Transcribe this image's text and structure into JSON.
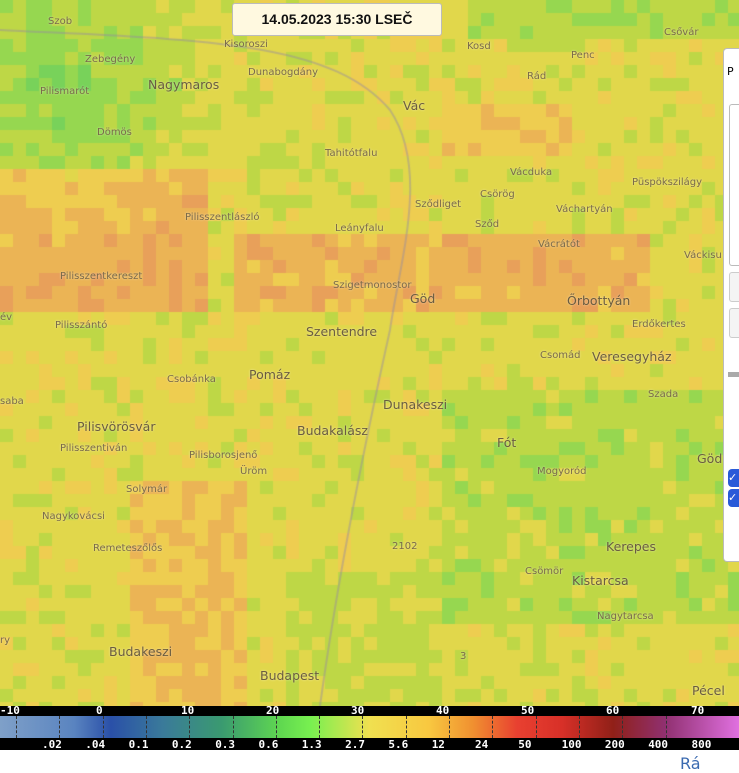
{
  "timestamp": "14.05.2023 15:30 LSEČ",
  "places": [
    "Szob",
    "Zebegény",
    "Pilismarót",
    "Nagymaros",
    "Kisoroszi",
    "Dunabogdány",
    "Kosd",
    "Penc",
    "Csővár",
    "Rád",
    "Vác",
    "Dömös",
    "Tahitótfalu",
    "Vácduka",
    "Püspökszilágy",
    "Csörög",
    "Sződliget",
    "Váchartyán",
    "Pilisszentlászló",
    "Sződ",
    "Leányfalu",
    "Vácrátót",
    "Váckisu",
    "Pilisszentkereszt",
    "Szigetmonostor",
    "Göd",
    "Őrbottyán",
    "Pilisszántó",
    "Erdőkertes",
    "Szentendre",
    "Csomád",
    "Veresegyház",
    "Csobánka",
    "Pomáz",
    "Szada",
    "saba",
    "Dunakeszi",
    "Pilisvörösvár",
    "Budakalász",
    "Fót",
    "Pilisszentiván",
    "Pilisborosjenő",
    "Üröm",
    "Mogyoród",
    "Göd",
    "Solymár",
    "Nagykovácsi",
    "Remeteszőlős",
    "Kerepes",
    "Csömör",
    "Kistarcsa",
    "Nagytarcsa",
    "Budakeszi",
    "Budapest",
    "Pécel",
    "ry",
    "év",
    "2102",
    "3"
  ],
  "legend": {
    "dbz": [
      "-10",
      "0",
      "10",
      "20",
      "30",
      "40",
      "50",
      "60",
      "70"
    ],
    "rain": [
      ".02",
      ".04",
      "0.1",
      "0.2",
      "0.3",
      "0.6",
      "1.3",
      "2.7",
      "5.6",
      "12",
      "24",
      "50",
      "100",
      "200",
      "400",
      "800"
    ]
  },
  "panel": {
    "title": "P"
  },
  "footer_link": "Rá"
}
